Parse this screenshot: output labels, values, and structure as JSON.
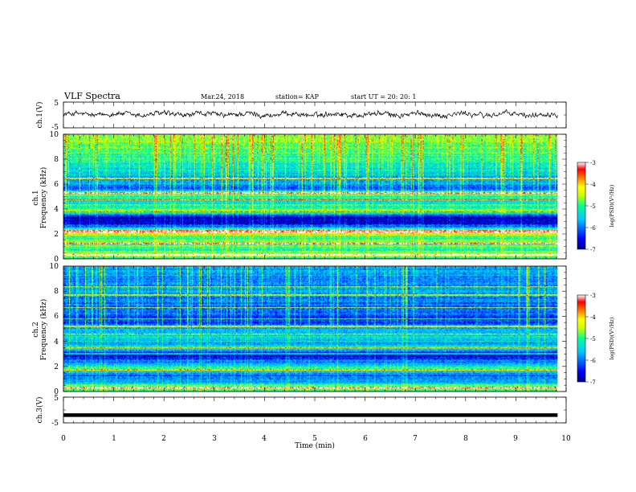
{
  "header": {
    "title": "VLF Spectra",
    "date": "Mar.24, 2018",
    "station": "station= KAP",
    "start": "start  UT =   20: 20: 1"
  },
  "colors": {
    "waveform": "#000000",
    "colormap": [
      "#000080",
      "#0000ff",
      "#00c8ff",
      "#00ff96",
      "#c8ff00",
      "#ffff00",
      "#ff8000",
      "#ff0000",
      "#ffffff"
    ]
  },
  "chart_data": [
    {
      "type": "line",
      "name": "ch1-waveform",
      "ylabel": "ch.1(V)",
      "ylim": [
        -5,
        5
      ],
      "yticks": [
        "5",
        "-5"
      ],
      "xlim": [
        0,
        10
      ],
      "x_end": 9.83,
      "waveform": {
        "mean": 0.2,
        "amplitude": 1.5,
        "noise": 0.6,
        "samples": 900
      }
    },
    {
      "type": "heatmap",
      "name": "ch1-spectrogram",
      "ylabel": [
        "ch.1",
        "Frequency  (kHz)"
      ],
      "xlim": [
        0,
        10
      ],
      "x_end": 9.83,
      "ylim": [
        0,
        10
      ],
      "yticks": [
        "0",
        "2",
        "4",
        "6",
        "8",
        "10"
      ],
      "colorbar": {
        "label": "log(PSD)(V²/Hz)",
        "range": [
          -7,
          -3
        ],
        "ticks": [
          "-3",
          "-4",
          "-5",
          "-6",
          "-7"
        ]
      },
      "spectral_profile": [
        {
          "f": 0.0,
          "v": -5.2
        },
        {
          "f": 0.3,
          "v": -4.3
        },
        {
          "f": 0.7,
          "v": -5.2
        },
        {
          "f": 1.2,
          "v": -4.7
        },
        {
          "f": 1.6,
          "v": -5.0
        },
        {
          "f": 2.0,
          "v": -4.5
        },
        {
          "f": 2.2,
          "v": -4.2
        },
        {
          "f": 2.5,
          "v": -5.6
        },
        {
          "f": 2.8,
          "v": -6.6
        },
        {
          "f": 3.3,
          "v": -6.9
        },
        {
          "f": 3.6,
          "v": -5.8
        },
        {
          "f": 3.8,
          "v": -4.6
        },
        {
          "f": 4.1,
          "v": -5.0
        },
        {
          "f": 4.6,
          "v": -5.3
        },
        {
          "f": 5.0,
          "v": -5.1
        },
        {
          "f": 5.3,
          "v": -4.6
        },
        {
          "f": 5.6,
          "v": -6.2
        },
        {
          "f": 6.0,
          "v": -5.8
        },
        {
          "f": 6.6,
          "v": -5.6
        },
        {
          "f": 7.2,
          "v": -5.3
        },
        {
          "f": 8.0,
          "v": -5.0
        },
        {
          "f": 9.0,
          "v": -4.8
        },
        {
          "f": 10.0,
          "v": -4.5
        }
      ],
      "spectral_lines_khz": [
        0.3,
        1.2,
        2.1,
        2.25,
        3.75,
        4.75,
        5.3,
        6.45
      ]
    },
    {
      "type": "heatmap",
      "name": "ch2-spectrogram",
      "ylabel": [
        "ch.2",
        "Frequency  (kHz)"
      ],
      "xlim": [
        0,
        10
      ],
      "x_end": 9.83,
      "ylim": [
        0,
        10
      ],
      "yticks": [
        "0",
        "2",
        "4",
        "6",
        "8",
        "10"
      ],
      "colorbar": {
        "label": "log(PSD)(V²/Hz)",
        "range": [
          -7,
          -3
        ],
        "ticks": [
          "-3",
          "-4",
          "-5",
          "-6",
          "-7"
        ]
      },
      "spectral_profile": [
        {
          "f": 0.0,
          "v": -5.2
        },
        {
          "f": 0.3,
          "v": -4.5
        },
        {
          "f": 0.8,
          "v": -5.9
        },
        {
          "f": 1.3,
          "v": -6.1
        },
        {
          "f": 1.8,
          "v": -5.0
        },
        {
          "f": 2.2,
          "v": -5.7
        },
        {
          "f": 2.6,
          "v": -6.3
        },
        {
          "f": 3.0,
          "v": -6.8
        },
        {
          "f": 3.4,
          "v": -5.2
        },
        {
          "f": 3.8,
          "v": -5.6
        },
        {
          "f": 4.3,
          "v": -5.4
        },
        {
          "f": 4.9,
          "v": -5.5
        },
        {
          "f": 5.5,
          "v": -6.3
        },
        {
          "f": 6.0,
          "v": -6.2
        },
        {
          "f": 7.0,
          "v": -6.0
        },
        {
          "f": 8.0,
          "v": -5.8
        },
        {
          "f": 9.0,
          "v": -5.9
        },
        {
          "f": 10.0,
          "v": -5.6
        }
      ],
      "spectral_lines_khz": [
        0.3,
        1.7,
        3.0,
        3.5,
        4.6,
        5.2,
        5.8,
        6.7,
        7.7,
        8.4
      ]
    },
    {
      "type": "line",
      "name": "ch3-waveform",
      "ylabel": "ch.3(V)",
      "ylim": [
        -5,
        5
      ],
      "yticks": [
        "5",
        "-5"
      ],
      "xlim": [
        0,
        10
      ],
      "x_end": 9.83,
      "constant_value": -2,
      "xlabel": "Time  (min)",
      "xticks": [
        "0",
        "1",
        "2",
        "3",
        "4",
        "5",
        "6",
        "7",
        "8",
        "9",
        "10"
      ]
    }
  ]
}
